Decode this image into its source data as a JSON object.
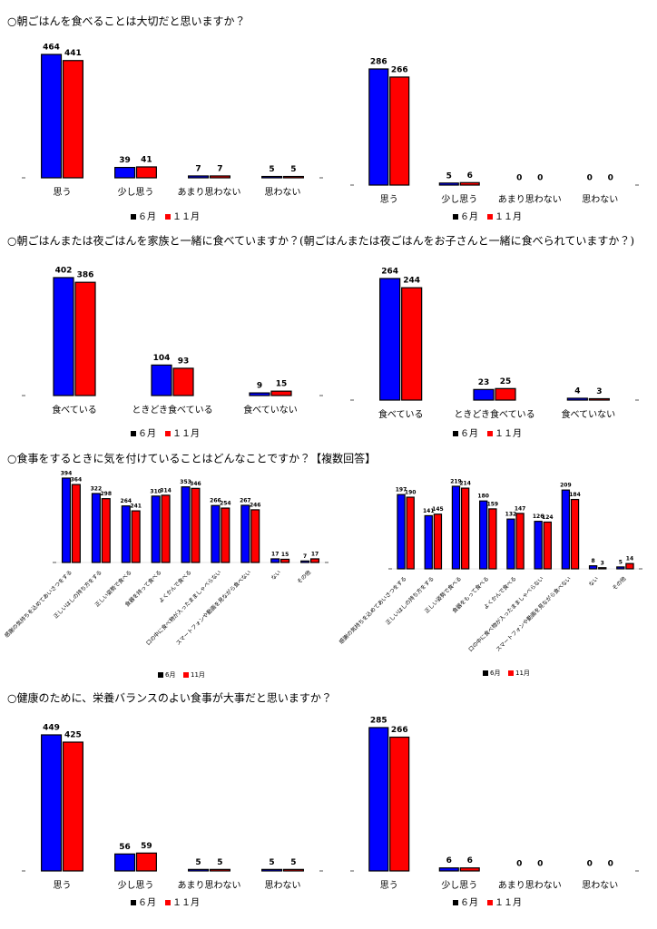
{
  "headings": [
    "○朝ごはんを食べることは大切だと思いますか？",
    "○朝ごはんまたは夜ごはんを家族と一緒に食べていますか？(朝ごはんまたは夜ごはんをお子さんと一緒に食べられていますか？)",
    "○食事をするときに気を付けていることはどんなことですか？【複数回答】",
    "○健康のために、栄養バランスのよい食事が大事だと思いますか？"
  ],
  "chart_data": [
    {
      "type": "bar",
      "categories": [
        "思う",
        "少し思う",
        "あまり思わない",
        "思わない"
      ],
      "series": [
        {
          "name": "６月",
          "color": "#0000ff",
          "values": [
            464,
            39,
            7,
            5
          ]
        },
        {
          "name": "１１月",
          "color": "#ff0000",
          "values": [
            441,
            41,
            7,
            5
          ]
        }
      ]
    },
    {
      "type": "bar",
      "categories": [
        "思う",
        "少し思う",
        "あまり思わない",
        "思わない"
      ],
      "series": [
        {
          "name": "６月",
          "color": "#0000ff",
          "values": [
            286,
            5,
            0,
            0
          ]
        },
        {
          "name": "１１月",
          "color": "#ff0000",
          "values": [
            266,
            6,
            0,
            0
          ]
        }
      ]
    },
    {
      "type": "bar",
      "categories": [
        "食べている",
        "ときどき食べている",
        "食べていない"
      ],
      "series": [
        {
          "name": "６月",
          "color": "#0000ff",
          "values": [
            402,
            104,
            9
          ]
        },
        {
          "name": "１１月",
          "color": "#ff0000",
          "values": [
            386,
            93,
            15
          ]
        }
      ]
    },
    {
      "type": "bar",
      "categories": [
        "食べている",
        "ときどき食べている",
        "食べていない"
      ],
      "series": [
        {
          "name": "６月",
          "color": "#0000ff",
          "values": [
            264,
            23,
            4
          ]
        },
        {
          "name": "１１月",
          "color": "#ff0000",
          "values": [
            244,
            25,
            3
          ]
        }
      ]
    },
    {
      "type": "bar",
      "categories": [
        "感謝の気持ちを込めてあいさつをする",
        "正しいはしの持ち方をする",
        "正しい姿勢で食べる",
        "食器を持って食べる",
        "よくかんで食べる",
        "口の中に食べ物が入ったまましゃべらない",
        "スマートフォンや動画を見ながら食べない",
        "ない",
        "その他"
      ],
      "series": [
        {
          "name": "6月",
          "color": "#0000ff",
          "values": [
            394,
            322,
            264,
            310,
            353,
            266,
            267,
            17,
            7
          ]
        },
        {
          "name": "11月",
          "color": "#ff0000",
          "values": [
            364,
            298,
            241,
            314,
            346,
            254,
            246,
            15,
            17
          ]
        }
      ]
    },
    {
      "type": "bar",
      "categories": [
        "感謝の気持ちを込めてあいさつをする",
        "正しいはしの持ち方をする",
        "正しい姿勢で食べる",
        "食器をもって食べる",
        "よくかんで食べる",
        "口の中に食べ物が入ったまましゃべらない",
        "スマートフォンや動画を見ながら食べない",
        "ない",
        "その他"
      ],
      "series": [
        {
          "name": "6月",
          "color": "#0000ff",
          "values": [
            197,
            141,
            219,
            180,
            132,
            126,
            209,
            8,
            5
          ]
        },
        {
          "name": "11月",
          "color": "#ff0000",
          "values": [
            190,
            145,
            214,
            159,
            147,
            124,
            184,
            3,
            14
          ]
        }
      ]
    },
    {
      "type": "bar",
      "categories": [
        "思う",
        "少し思う",
        "あまり思わない",
        "思わない"
      ],
      "series": [
        {
          "name": "６月",
          "color": "#0000ff",
          "values": [
            449,
            56,
            5,
            5
          ]
        },
        {
          "name": "１１月",
          "color": "#ff0000",
          "values": [
            425,
            59,
            5,
            5
          ]
        }
      ]
    },
    {
      "type": "bar",
      "categories": [
        "思う",
        "少し思う",
        "あまり思わない",
        "思わない"
      ],
      "series": [
        {
          "name": "６月",
          "color": "#0000ff",
          "values": [
            285,
            6,
            0,
            0
          ]
        },
        {
          "name": "１１月",
          "color": "#ff0000",
          "values": [
            266,
            6,
            0,
            0
          ]
        }
      ]
    }
  ]
}
